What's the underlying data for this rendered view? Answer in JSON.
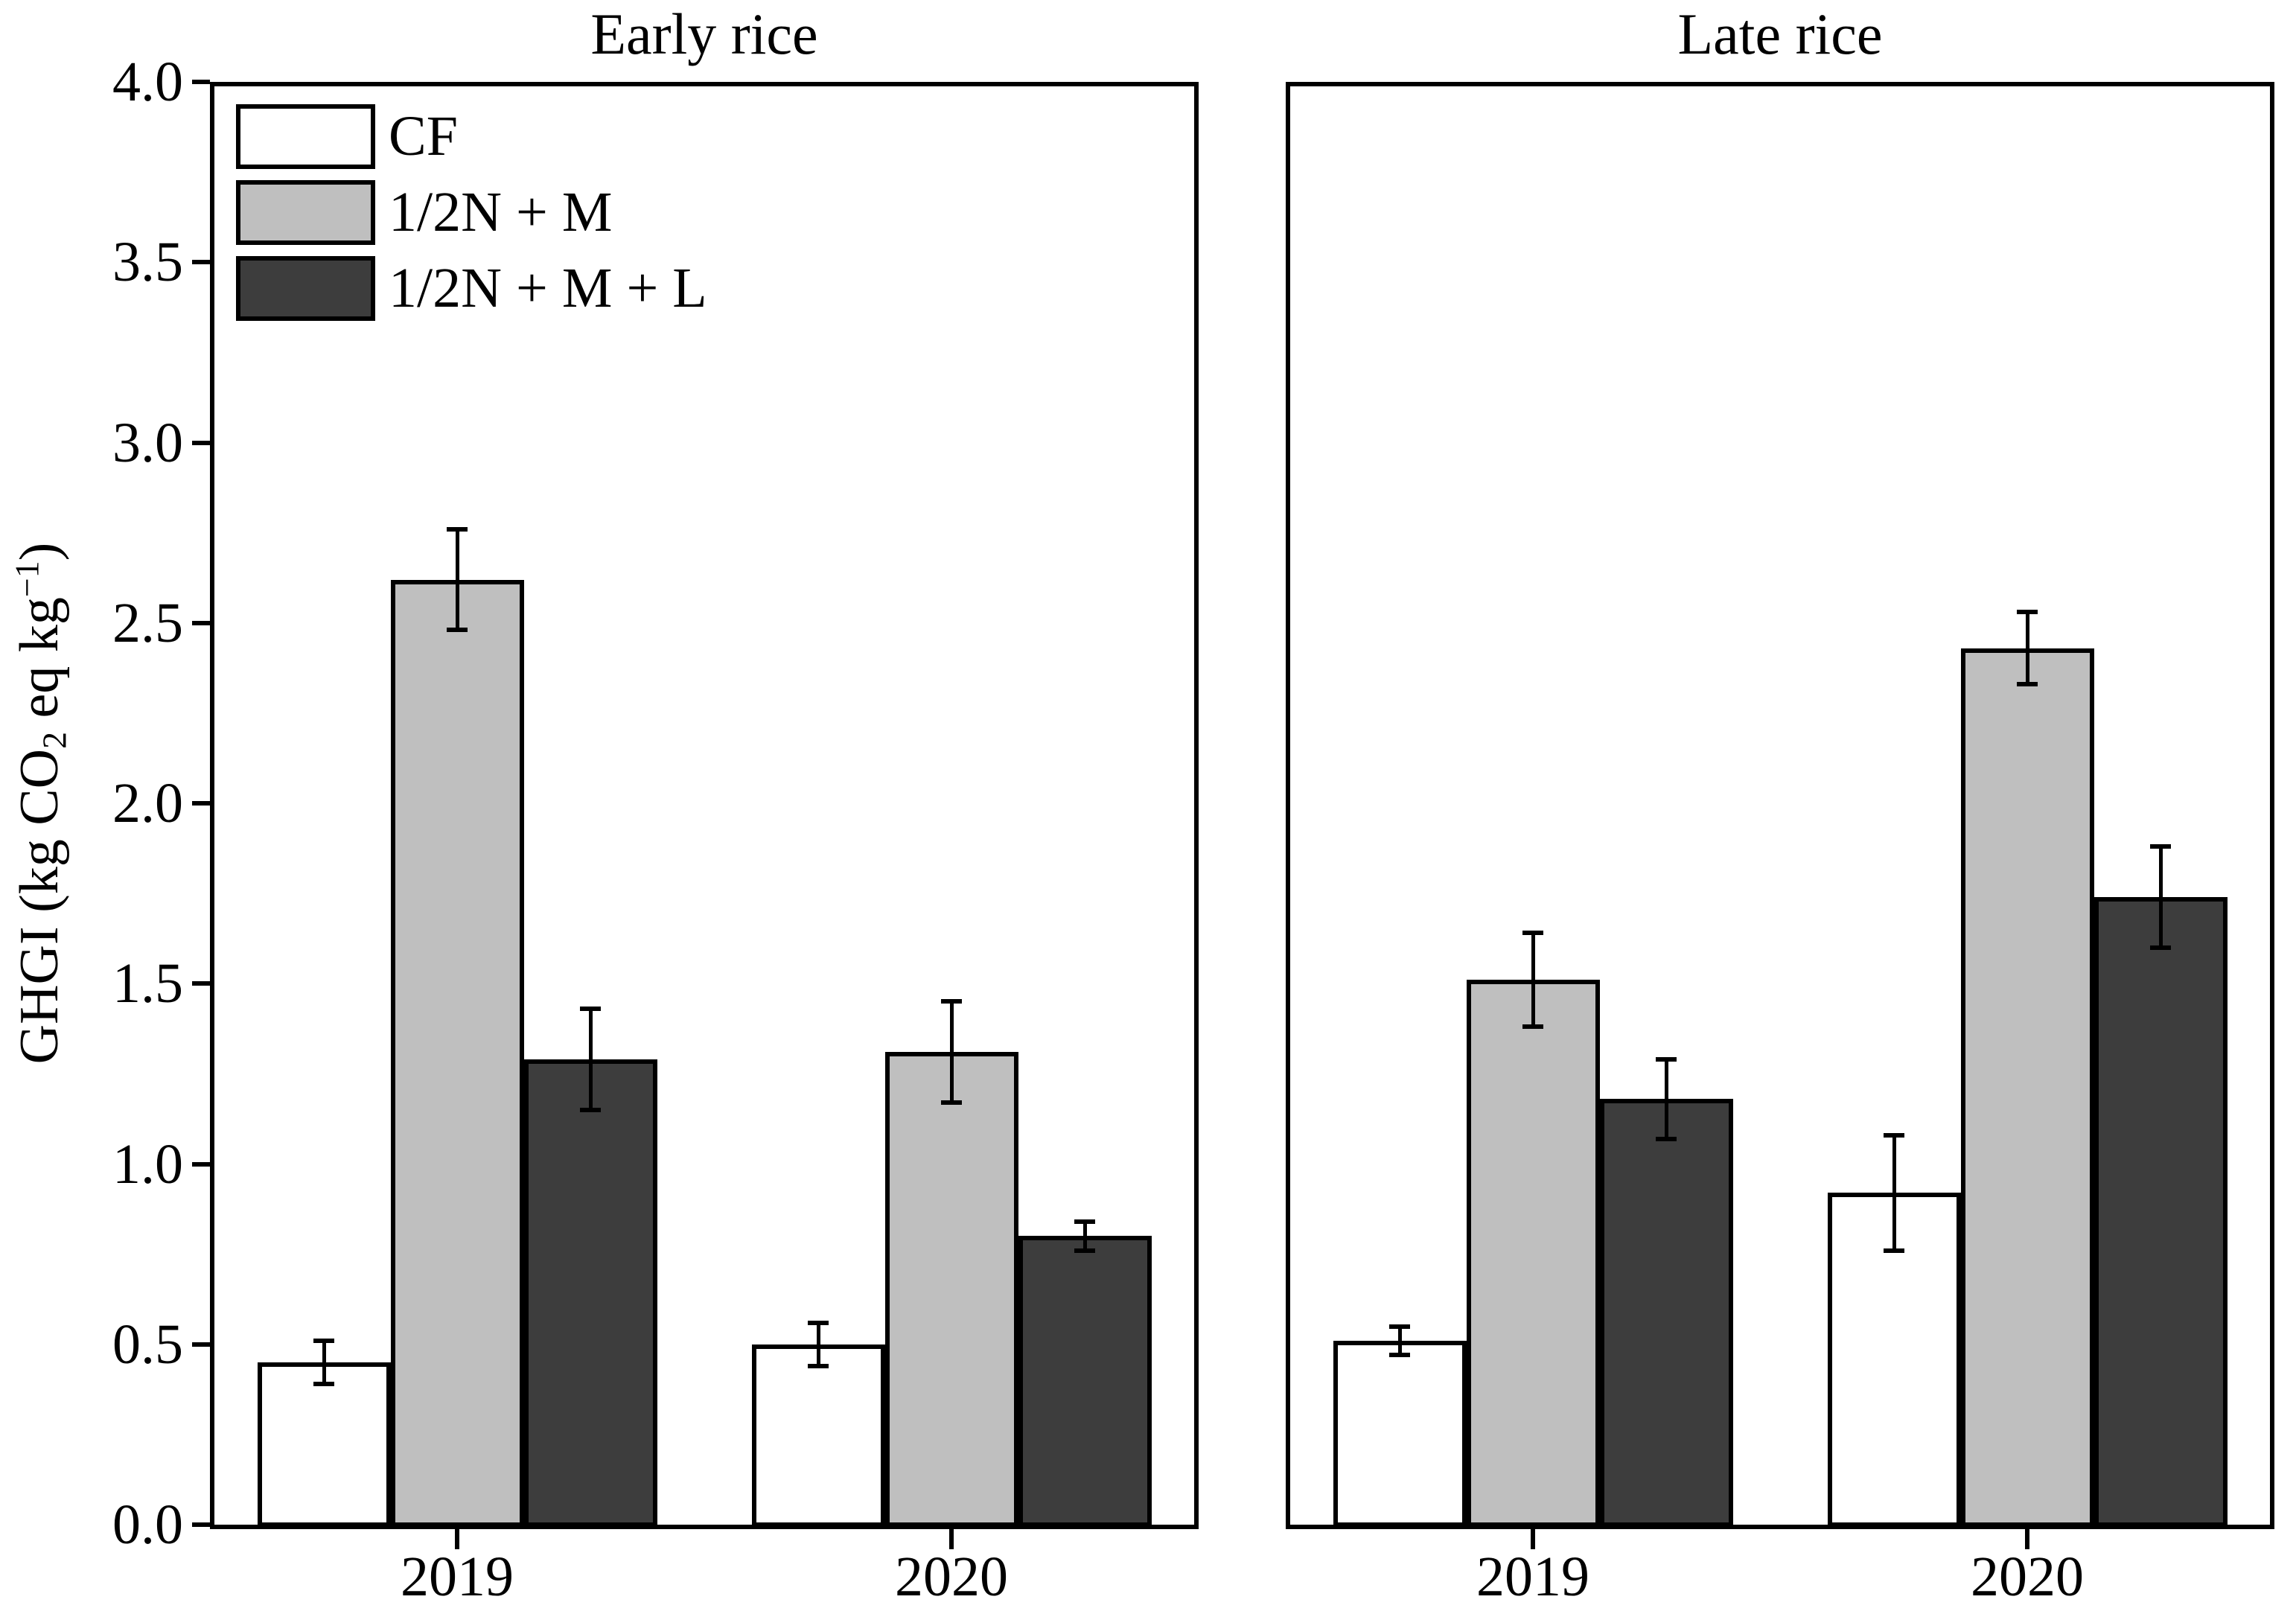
{
  "figure": {
    "background": "#ffffff",
    "axis_color": "#000000",
    "y_axis": {
      "min": 0,
      "max": 4,
      "tick_step": 0.5,
      "tick_labels": [
        "0.0",
        "0.5",
        "1.0",
        "1.5",
        "2.0",
        "2.5",
        "3.0",
        "3.5",
        "4.0"
      ],
      "label_text": "GHGI (kg CO2 eq kg−1)",
      "label_parts": {
        "pre": "GHGI (kg CO",
        "sub": "2",
        "mid": " eq kg",
        "sup": "−1",
        "post": ")"
      }
    },
    "legend": {
      "position": "top-left-of-first-panel",
      "items": [
        {
          "label": "CF",
          "color": "#ffffff"
        },
        {
          "label": "1/2N + M",
          "color": "#bfbfbf"
        },
        {
          "label": "1/2N + M + L",
          "color": "#3d3d3d"
        }
      ]
    }
  },
  "chart_data": [
    {
      "type": "bar",
      "title": "Early rice",
      "categories": [
        "2019",
        "2020"
      ],
      "ylabel": "GHGI (kg CO2 eq kg-1)",
      "ylim": [
        0,
        4
      ],
      "grid": false,
      "series": [
        {
          "name": "CF",
          "color": "#ffffff",
          "values": [
            0.45,
            0.5
          ],
          "errors": [
            0.06,
            0.06
          ]
        },
        {
          "name": "1/2N + M",
          "color": "#bfbfbf",
          "values": [
            2.62,
            1.31
          ],
          "errors": [
            0.14,
            0.14
          ]
        },
        {
          "name": "1/2N + M + L",
          "color": "#3d3d3d",
          "values": [
            1.29,
            0.8
          ],
          "errors": [
            0.14,
            0.04
          ]
        }
      ]
    },
    {
      "type": "bar",
      "title": "Late rice",
      "categories": [
        "2019",
        "2020"
      ],
      "ylabel": "GHGI (kg CO2 eq kg-1)",
      "ylim": [
        0,
        4
      ],
      "grid": false,
      "series": [
        {
          "name": "CF",
          "color": "#ffffff",
          "values": [
            0.51,
            0.92
          ],
          "errors": [
            0.04,
            0.16
          ]
        },
        {
          "name": "1/2N + M",
          "color": "#bfbfbf",
          "values": [
            1.51,
            2.43
          ],
          "errors": [
            0.13,
            0.1
          ]
        },
        {
          "name": "1/2N + M + L",
          "color": "#3d3d3d",
          "values": [
            1.18,
            1.74
          ],
          "errors": [
            0.11,
            0.14
          ]
        }
      ]
    }
  ]
}
